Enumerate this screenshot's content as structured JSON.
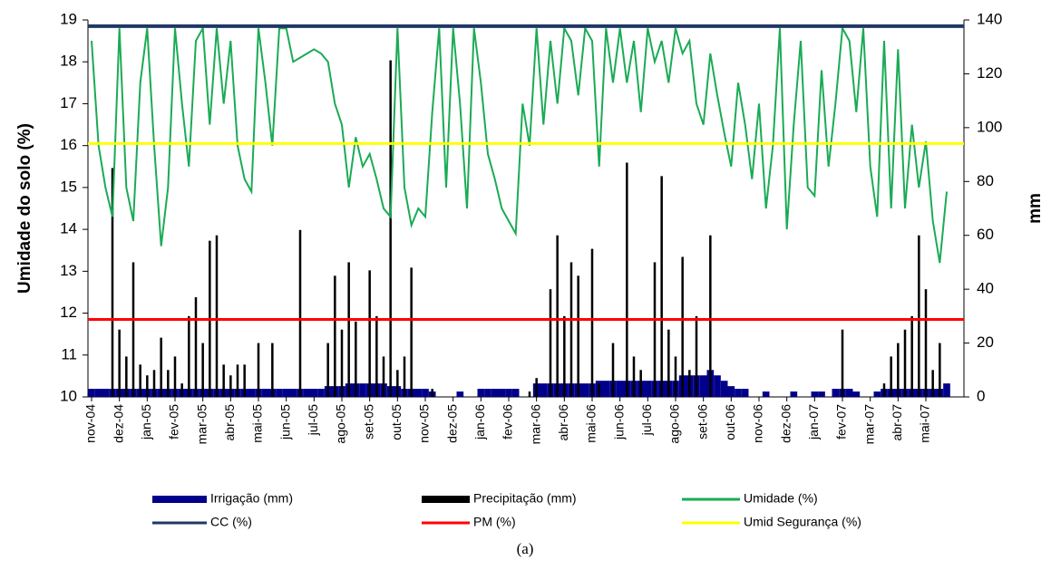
{
  "chart_data": {
    "type": "combo",
    "y_label": "Umidade do solo (%)",
    "y2_label": "mm",
    "caption": "(a)",
    "categories": [
      "nov-04",
      null,
      null,
      null,
      "dez-04",
      null,
      null,
      null,
      "jan-05",
      null,
      null,
      null,
      "fev-05",
      null,
      null,
      null,
      "mar-05",
      null,
      null,
      null,
      "abr-05",
      null,
      null,
      null,
      "mai-05",
      null,
      null,
      null,
      "jun-05",
      null,
      null,
      null,
      "jul-05",
      null,
      null,
      null,
      "ago-05",
      null,
      null,
      null,
      "set-05",
      null,
      null,
      null,
      "out-05",
      null,
      null,
      null,
      "nov-05",
      null,
      null,
      null,
      "dez-05",
      null,
      null,
      null,
      "jan-06",
      null,
      null,
      null,
      "fev-06",
      null,
      null,
      null,
      "mar-06",
      null,
      null,
      null,
      "abr-06",
      null,
      null,
      null,
      "mai-06",
      null,
      null,
      null,
      "jun-06",
      null,
      null,
      null,
      "jul-06",
      null,
      null,
      null,
      "ago-06",
      null,
      null,
      null,
      "set-06",
      null,
      null,
      null,
      "out-06",
      null,
      null,
      null,
      "nov-06",
      null,
      null,
      null,
      "dez-06",
      null,
      null,
      null,
      "jan-07",
      null,
      null,
      null,
      "fev-07",
      null,
      null,
      null,
      "mar-07",
      null,
      null,
      null,
      "abr-07",
      null,
      null,
      null,
      "mai-07",
      null,
      null,
      null
    ],
    "ylim": [
      10,
      19
    ],
    "yticks": [
      10,
      11,
      12,
      13,
      14,
      15,
      16,
      17,
      18,
      19
    ],
    "y2lim": [
      0,
      140
    ],
    "y2ticks": [
      0,
      20,
      40,
      60,
      80,
      100,
      120,
      140
    ],
    "series": [
      {
        "name": "Irrigação (mm)",
        "type": "bar",
        "axis": "y2",
        "color": "#00008b",
        "values": [
          3,
          3,
          3,
          3,
          3,
          3,
          3,
          3,
          3,
          3,
          3,
          3,
          3,
          3,
          3,
          3,
          3,
          3,
          3,
          3,
          3,
          3,
          3,
          3,
          3,
          3,
          3,
          3,
          3,
          3,
          3,
          3,
          3,
          3,
          4,
          4,
          4,
          5,
          5,
          5,
          5,
          5,
          5,
          4,
          4,
          3,
          3,
          3,
          3,
          2,
          0,
          0,
          0,
          2,
          0,
          0,
          3,
          3,
          3,
          3,
          3,
          3,
          0,
          0,
          5,
          5,
          5,
          5,
          5,
          5,
          5,
          5,
          5,
          6,
          6,
          6,
          6,
          6,
          6,
          6,
          6,
          6,
          6,
          6,
          6,
          8,
          8,
          8,
          8,
          10,
          8,
          6,
          4,
          3,
          3,
          0,
          0,
          2,
          0,
          0,
          0,
          2,
          0,
          0,
          2,
          2,
          0,
          3,
          3,
          3,
          2,
          0,
          0,
          2,
          3,
          3,
          3,
          3,
          3,
          3,
          3,
          3,
          3,
          5
        ]
      },
      {
        "name": "Precipitação (mm)",
        "type": "bar",
        "axis": "y2",
        "color": "#000000",
        "values": [
          0,
          0,
          0,
          85,
          25,
          15,
          50,
          12,
          8,
          10,
          22,
          10,
          15,
          5,
          30,
          37,
          20,
          58,
          60,
          12,
          8,
          12,
          12,
          0,
          20,
          0,
          20,
          0,
          0,
          0,
          62,
          0,
          0,
          0,
          20,
          45,
          25,
          50,
          28,
          0,
          47,
          30,
          15,
          125,
          10,
          15,
          48,
          0,
          0,
          3,
          0,
          0,
          0,
          0,
          0,
          0,
          0,
          0,
          0,
          0,
          0,
          0,
          0,
          2,
          7,
          0,
          40,
          60,
          30,
          50,
          45,
          0,
          55,
          5,
          0,
          20,
          0,
          87,
          15,
          10,
          0,
          50,
          82,
          25,
          15,
          52,
          10,
          30,
          0,
          60,
          0,
          0,
          0,
          0,
          0,
          0,
          0,
          0,
          0,
          0,
          0,
          0,
          0,
          0,
          0,
          0,
          0,
          0,
          25,
          0,
          0,
          0,
          0,
          0,
          5,
          15,
          20,
          25,
          30,
          60,
          40,
          10,
          20,
          0
        ]
      },
      {
        "name": "Umidade (%)",
        "type": "line",
        "color": "#1aab55",
        "values": [
          18.5,
          16,
          15,
          14.3,
          18.8,
          15,
          14.2,
          17.5,
          18.8,
          16,
          13.6,
          15,
          18.8,
          17,
          15.5,
          18.5,
          18.8,
          16.5,
          18.8,
          17,
          18.5,
          16,
          15.2,
          14.9,
          18.8,
          17.5,
          16,
          18.8,
          18.8,
          18,
          18.1,
          18.2,
          18.3,
          18.2,
          18,
          17,
          16.5,
          15,
          16.2,
          15.5,
          15.8,
          15.2,
          14.5,
          14.3,
          18.8,
          15,
          14.1,
          14.5,
          14.3,
          16.8,
          18.8,
          15,
          18.8,
          17,
          14.5,
          18.8,
          17.5,
          15.8,
          15.2,
          14.5,
          14.2,
          13.9,
          17,
          16,
          18.8,
          16.5,
          18.5,
          17,
          18.8,
          18.5,
          17.2,
          18.8,
          18.5,
          15.5,
          18.8,
          17.5,
          18.8,
          17.5,
          18.5,
          16.8,
          18.8,
          18,
          18.5,
          17.5,
          18.8,
          18.2,
          18.5,
          17,
          16.5,
          18.2,
          17.2,
          16.3,
          15.5,
          17.5,
          16.5,
          15.2,
          17,
          14.5,
          16,
          18.8,
          14,
          16.5,
          18.5,
          15,
          14.8,
          17.8,
          15.5,
          17,
          18.8,
          18.5,
          16.8,
          18.8,
          15.5,
          14.3,
          18.5,
          14.5,
          18.3,
          14.5,
          16.5,
          15,
          16.1,
          14.2,
          13.2,
          14.9
        ]
      },
      {
        "name": "CC (%)",
        "type": "hline",
        "color": "#1f3864",
        "value": 18.85
      },
      {
        "name": "PM (%)",
        "type": "hline",
        "color": "#ff0000",
        "value": 11.85
      },
      {
        "name": "Umid Segurança (%)",
        "type": "hline",
        "color": "#ffff00",
        "value": 16.05
      }
    ]
  }
}
